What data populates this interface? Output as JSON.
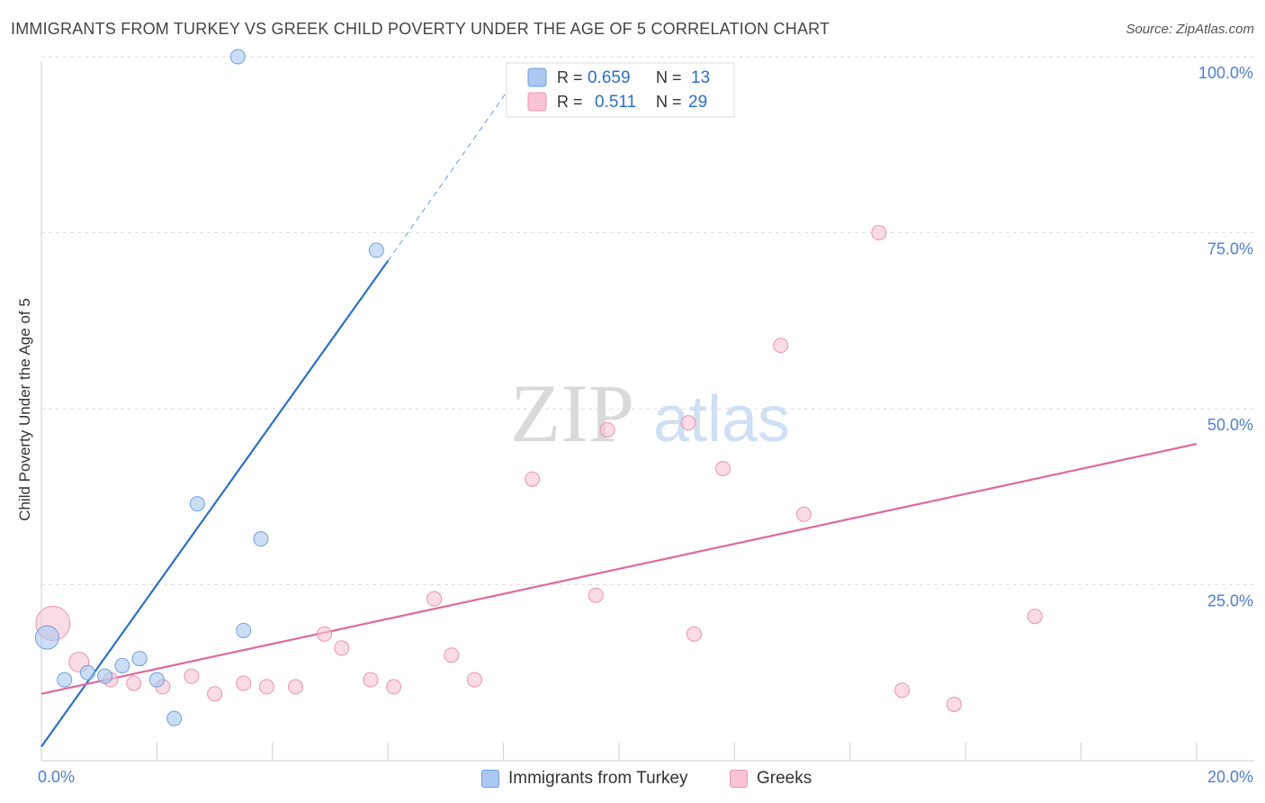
{
  "header": {
    "title": "IMMIGRANTS FROM TURKEY VS GREEK CHILD POVERTY UNDER THE AGE OF 5 CORRELATION CHART",
    "source": "Source: ZipAtlas.com"
  },
  "watermark": {
    "zip": "ZIP",
    "atlas": "atlas"
  },
  "colors": {
    "turkey_fill": "#aac8f0",
    "turkey_stroke": "#6f9fde",
    "turkey_line": "#2a6fcc",
    "greek_fill": "#f8c3d4",
    "greek_stroke": "#eb92b0",
    "greek_line": "#e0689a",
    "tick_label": "#4a7fd0",
    "grid": "#dddddd"
  },
  "legend_top": {
    "rows": [
      {
        "r_label": "R =",
        "r_value": "0.659",
        "n_label": "N =",
        "n_value": "13"
      },
      {
        "r_label": "R =",
        "r_value": "0.511",
        "n_label": "N =",
        "n_value": "29"
      }
    ]
  },
  "legend_bottom": {
    "items": [
      {
        "label": "Immigrants from Turkey"
      },
      {
        "label": "Greeks"
      }
    ]
  },
  "chart_data": {
    "type": "scatter",
    "title": "IMMIGRANTS FROM TURKEY VS GREEK CHILD POVERTY UNDER THE AGE OF 5 CORRELATION CHART",
    "xlabel": "",
    "ylabel": "Child Poverty Under the Age of 5",
    "xlim": [
      0,
      20
    ],
    "ylim": [
      0,
      100
    ],
    "x_tick_labels": [
      {
        "value": 0,
        "label": "0.0%"
      },
      {
        "value": 20,
        "label": "20.0%"
      }
    ],
    "y_tick_labels": [
      {
        "value": 25,
        "label": "25.0%"
      },
      {
        "value": 50,
        "label": "50.0%"
      },
      {
        "value": 75,
        "label": "75.0%"
      },
      {
        "value": 100,
        "label": "100.0%"
      }
    ],
    "x_minor_ticks": [
      2,
      4,
      6,
      8,
      10,
      12,
      14,
      16,
      18,
      20
    ],
    "grid": true,
    "series": [
      {
        "name": "Immigrants from Turkey",
        "r": 0.659,
        "n": 13,
        "points": [
          {
            "x": 0.1,
            "y": 17.5,
            "size": "large"
          },
          {
            "x": 0.4,
            "y": 11.5
          },
          {
            "x": 0.8,
            "y": 12.5
          },
          {
            "x": 1.1,
            "y": 12.0
          },
          {
            "x": 1.4,
            "y": 13.5
          },
          {
            "x": 1.7,
            "y": 14.5
          },
          {
            "x": 2.0,
            "y": 11.5
          },
          {
            "x": 2.3,
            "y": 6.0
          },
          {
            "x": 2.7,
            "y": 36.5
          },
          {
            "x": 3.4,
            "y": 100.0
          },
          {
            "x": 3.5,
            "y": 18.5
          },
          {
            "x": 3.8,
            "y": 31.5
          },
          {
            "x": 5.8,
            "y": 72.5
          }
        ],
        "trendline": {
          "x": [
            0.0,
            6.0
          ],
          "y": [
            2.0,
            71.0
          ]
        },
        "trendline_extrapolated": {
          "x": [
            6.0,
            8.4
          ],
          "y": [
            71.0,
            99.0
          ]
        }
      },
      {
        "name": "Greeks",
        "r": 0.511,
        "n": 29,
        "points": [
          {
            "x": 0.2,
            "y": 19.5,
            "size": "xlarge"
          },
          {
            "x": 0.65,
            "y": 14.0,
            "size": "medium"
          },
          {
            "x": 1.2,
            "y": 11.5
          },
          {
            "x": 1.6,
            "y": 11.0
          },
          {
            "x": 2.1,
            "y": 10.5
          },
          {
            "x": 2.6,
            "y": 12.0
          },
          {
            "x": 3.0,
            "y": 9.5
          },
          {
            "x": 3.5,
            "y": 11.0
          },
          {
            "x": 3.9,
            "y": 10.5
          },
          {
            "x": 4.4,
            "y": 10.5
          },
          {
            "x": 4.9,
            "y": 18.0
          },
          {
            "x": 5.2,
            "y": 16.0
          },
          {
            "x": 5.7,
            "y": 11.5
          },
          {
            "x": 6.1,
            "y": 10.5
          },
          {
            "x": 6.8,
            "y": 23.0
          },
          {
            "x": 7.1,
            "y": 15.0
          },
          {
            "x": 7.5,
            "y": 11.5
          },
          {
            "x": 8.5,
            "y": 40.0
          },
          {
            "x": 9.6,
            "y": 23.5
          },
          {
            "x": 9.8,
            "y": 47.0
          },
          {
            "x": 11.2,
            "y": 48.0
          },
          {
            "x": 11.3,
            "y": 18.0
          },
          {
            "x": 11.8,
            "y": 41.5
          },
          {
            "x": 12.8,
            "y": 59.0
          },
          {
            "x": 13.2,
            "y": 35.0
          },
          {
            "x": 14.5,
            "y": 75.0
          },
          {
            "x": 14.9,
            "y": 10.0
          },
          {
            "x": 15.8,
            "y": 8.0
          },
          {
            "x": 17.2,
            "y": 20.5
          }
        ],
        "trendline": {
          "x": [
            0.0,
            20.0
          ],
          "y": [
            9.5,
            45.0
          ]
        }
      }
    ]
  }
}
